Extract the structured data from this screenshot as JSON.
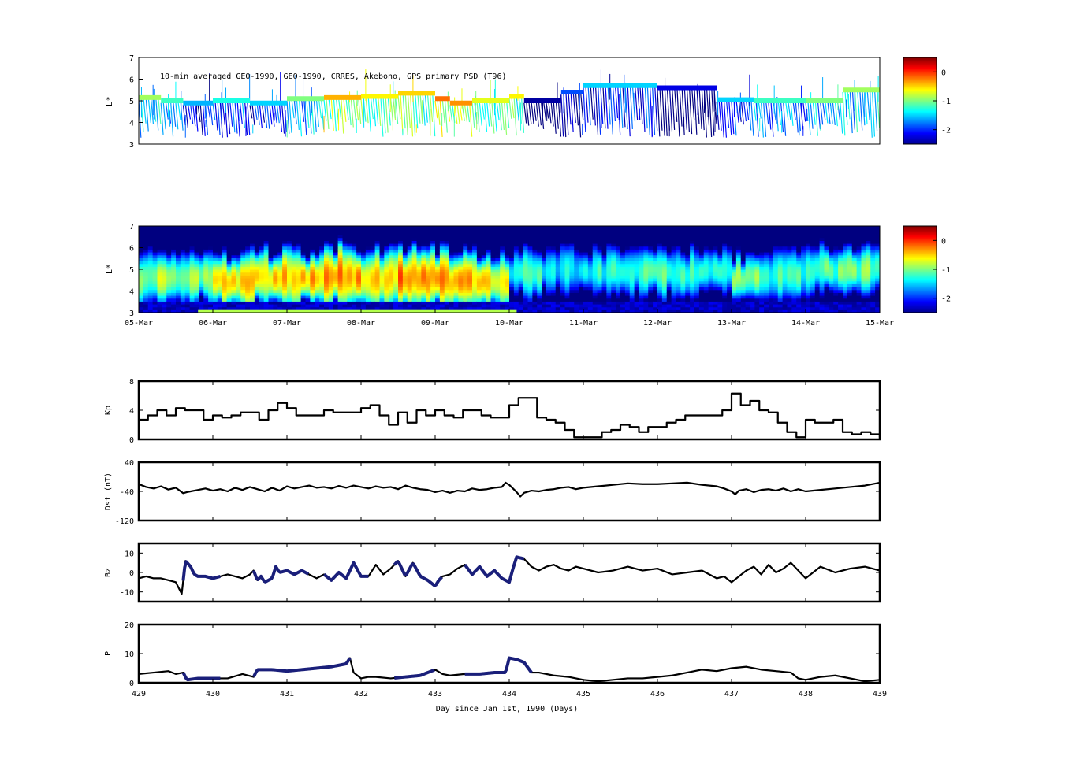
{
  "chart_data": [
    {
      "type": "scatter",
      "panel": "psd-observations",
      "annotation": "10-min averaged GEO-1990, GEO-1990, CRRES, Akebono, GPS  primary PSD (T96)",
      "ylabel": "L*",
      "ylim": [
        3,
        7
      ],
      "yticks": [
        "3",
        "4",
        "5",
        "6",
        "7"
      ],
      "colorbar_ticks": [
        "0",
        "-1",
        "-2"
      ],
      "colorbar_range": [
        -2.5,
        0.5
      ],
      "colormap": "jet",
      "outer_orbit_segments": [
        {
          "x": [
            429.0,
            429.3
          ],
          "y": 5.15,
          "c": -0.9
        },
        {
          "x": [
            429.3,
            429.6
          ],
          "y": 5.0,
          "c": -1.2
        },
        {
          "x": [
            429.6,
            430.0
          ],
          "y": 4.9,
          "c": -1.6
        },
        {
          "x": [
            430.0,
            430.5
          ],
          "y": 5.0,
          "c": -1.3
        },
        {
          "x": [
            430.5,
            431.0
          ],
          "y": 4.9,
          "c": -1.5
        },
        {
          "x": [
            431.0,
            431.5
          ],
          "y": 5.1,
          "c": -1.0
        },
        {
          "x": [
            431.5,
            432.0
          ],
          "y": 5.15,
          "c": -0.4
        },
        {
          "x": [
            432.0,
            432.5
          ],
          "y": 5.2,
          "c": -0.6
        },
        {
          "x": [
            432.5,
            433.0
          ],
          "y": 5.35,
          "c": -0.5
        },
        {
          "x": [
            433.0,
            433.2
          ],
          "y": 5.1,
          "c": -0.2
        },
        {
          "x": [
            433.2,
            433.5
          ],
          "y": 4.9,
          "c": -0.3
        },
        {
          "x": [
            433.5,
            434.0
          ],
          "y": 5.0,
          "c": -0.7
        },
        {
          "x": [
            434.0,
            434.2
          ],
          "y": 5.2,
          "c": -0.6
        },
        {
          "x": [
            434.2,
            434.7
          ],
          "y": 5.0,
          "c": -2.4
        },
        {
          "x": [
            434.7,
            435.0
          ],
          "y": 5.4,
          "c": -1.9
        },
        {
          "x": [
            435.0,
            436.0
          ],
          "y": 5.7,
          "c": -1.5
        },
        {
          "x": [
            436.0,
            436.8
          ],
          "y": 5.6,
          "c": -2.2
        },
        {
          "x": [
            436.8,
            437.3
          ],
          "y": 5.05,
          "c": -1.5
        },
        {
          "x": [
            437.3,
            438.0
          ],
          "y": 5.0,
          "c": -1.2
        },
        {
          "x": [
            438.0,
            438.5
          ],
          "y": 5.0,
          "c": -1.0
        },
        {
          "x": [
            438.5,
            439.0
          ],
          "y": 5.5,
          "c": -0.9
        }
      ]
    },
    {
      "type": "heatmap",
      "panel": "psd-reanalysis",
      "ylabel": "L*",
      "ylim": [
        3,
        7
      ],
      "yticks": [
        "3",
        "4",
        "5",
        "6",
        "7"
      ],
      "xtick_labels": [
        "05-Mar",
        "06-Mar",
        "07-Mar",
        "08-Mar",
        "09-Mar",
        "10-Mar",
        "11-Mar",
        "12-Mar",
        "13-Mar",
        "14-Mar",
        "15-Mar"
      ],
      "colorbar_ticks": [
        "0",
        "-1",
        "-2"
      ],
      "colorbar_range": [
        -2.5,
        0.5
      ],
      "colormap": "jet",
      "peak_log_psd": [
        -0.9,
        -1.0,
        -0.6,
        -0.5,
        -0.4,
        -0.3,
        -0.5,
        -0.2,
        -0.4,
        -0.6,
        -1.3,
        -1.4,
        -1.3,
        -1.2,
        -1.1,
        -1.3,
        -1.0,
        -1.2,
        -1.1,
        -1.0
      ],
      "peak_L": [
        4.6,
        4.6,
        4.5,
        4.6,
        4.6,
        4.7,
        4.6,
        4.6,
        4.5,
        4.4,
        4.8,
        5.0,
        4.9,
        4.9,
        4.8,
        4.9,
        4.6,
        4.8,
        5.0,
        5.0
      ]
    },
    {
      "type": "line",
      "panel": "kp",
      "ylabel": "Kp",
      "ylim": [
        0,
        8
      ],
      "yticks": [
        "0",
        "4",
        "8"
      ],
      "series": [
        {
          "x": [
            429.0,
            429.125,
            429.25,
            429.375,
            429.5,
            429.625,
            429.75,
            429.875,
            430.0,
            430.125,
            430.25,
            430.375,
            430.5,
            430.625,
            430.75,
            430.875,
            431.0,
            431.125,
            431.25,
            431.375,
            431.5,
            431.625,
            431.75,
            431.875,
            432.0,
            432.125,
            432.25,
            432.375,
            432.5,
            432.625,
            432.75,
            432.875,
            433.0,
            433.125,
            433.25,
            433.375,
            433.5,
            433.625,
            433.75,
            433.875,
            434.0,
            434.125,
            434.25,
            434.375,
            434.5,
            434.625,
            434.75,
            434.875,
            435.0,
            435.125,
            435.25,
            435.375,
            435.5,
            435.625,
            435.75,
            435.875,
            436.0,
            436.125,
            436.25,
            436.375,
            436.5,
            436.625,
            436.75,
            436.875,
            437.0,
            437.125,
            437.25,
            437.375,
            437.5,
            437.625,
            437.75,
            437.875,
            438.0,
            438.125,
            438.25,
            438.375,
            438.5,
            438.625,
            438.75,
            438.875,
            439.0
          ],
          "y": [
            2.7,
            3.3,
            4.0,
            3.3,
            4.3,
            4.0,
            4.0,
            2.7,
            3.3,
            3.0,
            3.3,
            3.7,
            3.7,
            2.7,
            4.0,
            5.0,
            4.3,
            3.3,
            3.3,
            3.3,
            4.0,
            3.7,
            3.7,
            3.7,
            4.3,
            4.7,
            3.3,
            2.0,
            3.7,
            2.3,
            4.0,
            3.3,
            4.0,
            3.3,
            3.0,
            4.0,
            4.0,
            3.3,
            3.0,
            3.0,
            4.7,
            5.7,
            5.7,
            3.0,
            2.7,
            2.3,
            1.3,
            0.3,
            0.3,
            0.3,
            1.0,
            1.3,
            2.0,
            1.7,
            1.0,
            1.7,
            1.7,
            2.3,
            2.7,
            3.3,
            3.3,
            3.3,
            3.3,
            4.0,
            6.3,
            4.7,
            5.3,
            4.0,
            3.7,
            2.3,
            1.0,
            0.3,
            2.7,
            2.3,
            2.3,
            2.7,
            1.0,
            0.7,
            1.0,
            0.7,
            0.3
          ]
        }
      ]
    },
    {
      "type": "line",
      "panel": "dst",
      "ylabel": "Dst (nT)",
      "ylim": [
        -120,
        40
      ],
      "yticks": [
        "-120",
        "-40",
        "40"
      ],
      "series": [
        {
          "x": [
            429.0,
            429.1,
            429.2,
            429.3,
            429.4,
            429.5,
            429.6,
            429.65,
            429.7,
            429.8,
            429.9,
            430.0,
            430.1,
            430.2,
            430.3,
            430.4,
            430.5,
            430.6,
            430.7,
            430.8,
            430.9,
            431.0,
            431.1,
            431.2,
            431.3,
            431.4,
            431.5,
            431.6,
            431.7,
            431.8,
            431.9,
            432.0,
            432.1,
            432.2,
            432.3,
            432.4,
            432.5,
            432.6,
            432.7,
            432.8,
            432.9,
            433.0,
            433.1,
            433.2,
            433.3,
            433.4,
            433.5,
            433.6,
            433.7,
            433.8,
            433.9,
            433.95,
            434.0,
            434.1,
            434.15,
            434.2,
            434.3,
            434.4,
            434.5,
            434.6,
            434.7,
            434.8,
            434.9,
            435.0,
            435.2,
            435.4,
            435.6,
            435.8,
            436.0,
            436.2,
            436.4,
            436.6,
            436.8,
            436.9,
            437.0,
            437.05,
            437.1,
            437.2,
            437.3,
            437.4,
            437.5,
            437.6,
            437.7,
            437.8,
            437.9,
            438.0,
            438.2,
            438.4,
            438.6,
            438.8,
            439.0
          ],
          "y": [
            -20,
            -28,
            -32,
            -26,
            -35,
            -30,
            -45,
            -42,
            -40,
            -36,
            -32,
            -38,
            -34,
            -40,
            -30,
            -36,
            -28,
            -34,
            -40,
            -30,
            -38,
            -26,
            -32,
            -28,
            -24,
            -30,
            -28,
            -32,
            -25,
            -30,
            -24,
            -28,
            -32,
            -26,
            -30,
            -28,
            -34,
            -24,
            -30,
            -34,
            -36,
            -42,
            -38,
            -44,
            -38,
            -40,
            -32,
            -36,
            -34,
            -30,
            -28,
            -16,
            -22,
            -42,
            -54,
            -44,
            -38,
            -40,
            -36,
            -34,
            -30,
            -28,
            -34,
            -30,
            -26,
            -22,
            -18,
            -20,
            -20,
            -18,
            -16,
            -22,
            -26,
            -32,
            -40,
            -48,
            -38,
            -34,
            -42,
            -36,
            -34,
            -38,
            -32,
            -40,
            -34,
            -40,
            -36,
            -32,
            -28,
            -24,
            -16
          ]
        }
      ]
    },
    {
      "type": "line",
      "panel": "bz",
      "ylabel": "Bz",
      "ylim": [
        -15,
        15
      ],
      "yticks": [
        "-10",
        "0",
        "10"
      ],
      "series": [
        {
          "x": [
            429.0,
            429.1,
            429.2,
            429.3,
            429.4,
            429.5,
            429.58,
            429.63,
            429.7,
            429.75,
            429.8,
            429.9,
            430.0,
            430.1,
            430.2,
            430.3,
            430.4,
            430.5,
            430.55,
            430.6,
            430.65,
            430.7,
            430.8,
            430.85,
            430.9,
            431.0,
            431.1,
            431.2,
            431.3,
            431.4,
            431.5,
            431.6,
            431.7,
            431.8,
            431.9,
            432.0,
            432.1,
            432.2,
            432.3,
            432.4,
            432.5,
            432.6,
            432.7,
            432.8,
            432.9,
            433.0,
            433.05,
            433.1,
            433.2,
            433.3,
            433.4,
            433.5,
            433.6,
            433.7,
            433.8,
            433.9,
            434.0,
            434.05,
            434.1,
            434.2,
            434.3,
            434.4,
            434.5,
            434.6,
            434.7,
            434.8,
            434.9,
            435.0,
            435.2,
            435.4,
            435.6,
            435.8,
            436.0,
            436.2,
            436.4,
            436.6,
            436.8,
            436.9,
            437.0,
            437.1,
            437.2,
            437.3,
            437.4,
            437.5,
            437.6,
            437.7,
            437.8,
            437.9,
            438.0,
            438.2,
            438.4,
            438.6,
            438.8,
            439.0
          ],
          "y": [
            -3,
            -2,
            -3,
            -3,
            -4,
            -5,
            -11,
            6,
            3,
            -1,
            -2,
            -2,
            -3,
            -2,
            -1,
            -2,
            -3,
            -1,
            1,
            -4,
            -2,
            -5,
            -3,
            3,
            0,
            1,
            -1,
            1,
            -1,
            -3,
            -1,
            -4,
            0,
            -3,
            5,
            -2,
            -2,
            4,
            -1,
            2,
            6,
            -2,
            5,
            -2,
            -4,
            -7,
            -4,
            -2,
            -1,
            2,
            4,
            -1,
            3,
            -2,
            1,
            -3,
            -5,
            2,
            8,
            7,
            3,
            1,
            3,
            4,
            2,
            1,
            3,
            2,
            0,
            1,
            3,
            1,
            2,
            -1,
            0,
            1,
            -3,
            -2,
            -5,
            -2,
            1,
            3,
            -1,
            4,
            0,
            2,
            5,
            1,
            -3,
            3,
            0,
            2,
            3,
            1
          ]
        },
        {
          "x": [
            429.6,
            430.1
          ],
          "highlight": "dark-blue"
        },
        {
          "x": [
            430.55,
            431.3
          ],
          "highlight": "dark-blue"
        },
        {
          "x": [
            431.5,
            432.1
          ],
          "highlight": "dark-blue"
        },
        {
          "x": [
            432.45,
            433.1
          ],
          "highlight": "dark-blue"
        },
        {
          "x": [
            433.4,
            434.2
          ],
          "highlight": "dark-blue"
        }
      ]
    },
    {
      "type": "line",
      "panel": "p",
      "ylabel": "P",
      "xlabel": "Day since Jan 1st, 1990 (Days)",
      "ylim": [
        0,
        20
      ],
      "yticks": [
        "0",
        "10",
        "20"
      ],
      "xticks": [
        "429",
        "430",
        "431",
        "432",
        "433",
        "434",
        "435",
        "436",
        "437",
        "438",
        "439"
      ],
      "series": [
        {
          "x": [
            429.0,
            429.2,
            429.4,
            429.5,
            429.6,
            429.65,
            429.8,
            430.0,
            430.2,
            430.4,
            430.55,
            430.6,
            430.8,
            431.0,
            431.2,
            431.4,
            431.6,
            431.7,
            431.8,
            431.85,
            431.9,
            432.0,
            432.1,
            432.2,
            432.4,
            432.6,
            432.8,
            433.0,
            433.1,
            433.2,
            433.4,
            433.6,
            433.8,
            433.95,
            434.0,
            434.1,
            434.2,
            434.3,
            434.4,
            434.6,
            434.8,
            435.0,
            435.2,
            435.4,
            435.6,
            435.8,
            436.0,
            436.2,
            436.4,
            436.6,
            436.8,
            437.0,
            437.2,
            437.4,
            437.6,
            437.8,
            437.9,
            438.0,
            438.2,
            438.4,
            438.6,
            438.8,
            439.0
          ],
          "y": [
            3,
            3.5,
            4,
            3,
            3.5,
            1,
            1.5,
            1.5,
            1.5,
            3,
            2,
            4.5,
            4.5,
            4,
            4.5,
            5,
            5.5,
            6,
            6.5,
            8.5,
            3.5,
            1.5,
            2,
            2,
            1.5,
            2,
            2.5,
            4.5,
            3,
            2.5,
            3,
            3,
            3.5,
            3.5,
            8.5,
            8,
            7,
            3.5,
            3.5,
            2.5,
            2,
            1,
            0.5,
            1,
            1.5,
            1.5,
            2,
            2.5,
            3.5,
            4.5,
            4,
            5,
            5.5,
            4.5,
            4,
            3.5,
            1.5,
            1,
            2,
            2.5,
            1.5,
            0.5,
            1
          ]
        },
        {
          "x": [
            429.6,
            430.1
          ],
          "highlight": "dark-blue"
        },
        {
          "x": [
            430.55,
            431.85
          ],
          "highlight": "dark-blue"
        },
        {
          "x": [
            432.45,
            433.0
          ],
          "highlight": "dark-blue"
        },
        {
          "x": [
            433.4,
            434.3
          ],
          "highlight": "dark-blue"
        }
      ]
    }
  ]
}
